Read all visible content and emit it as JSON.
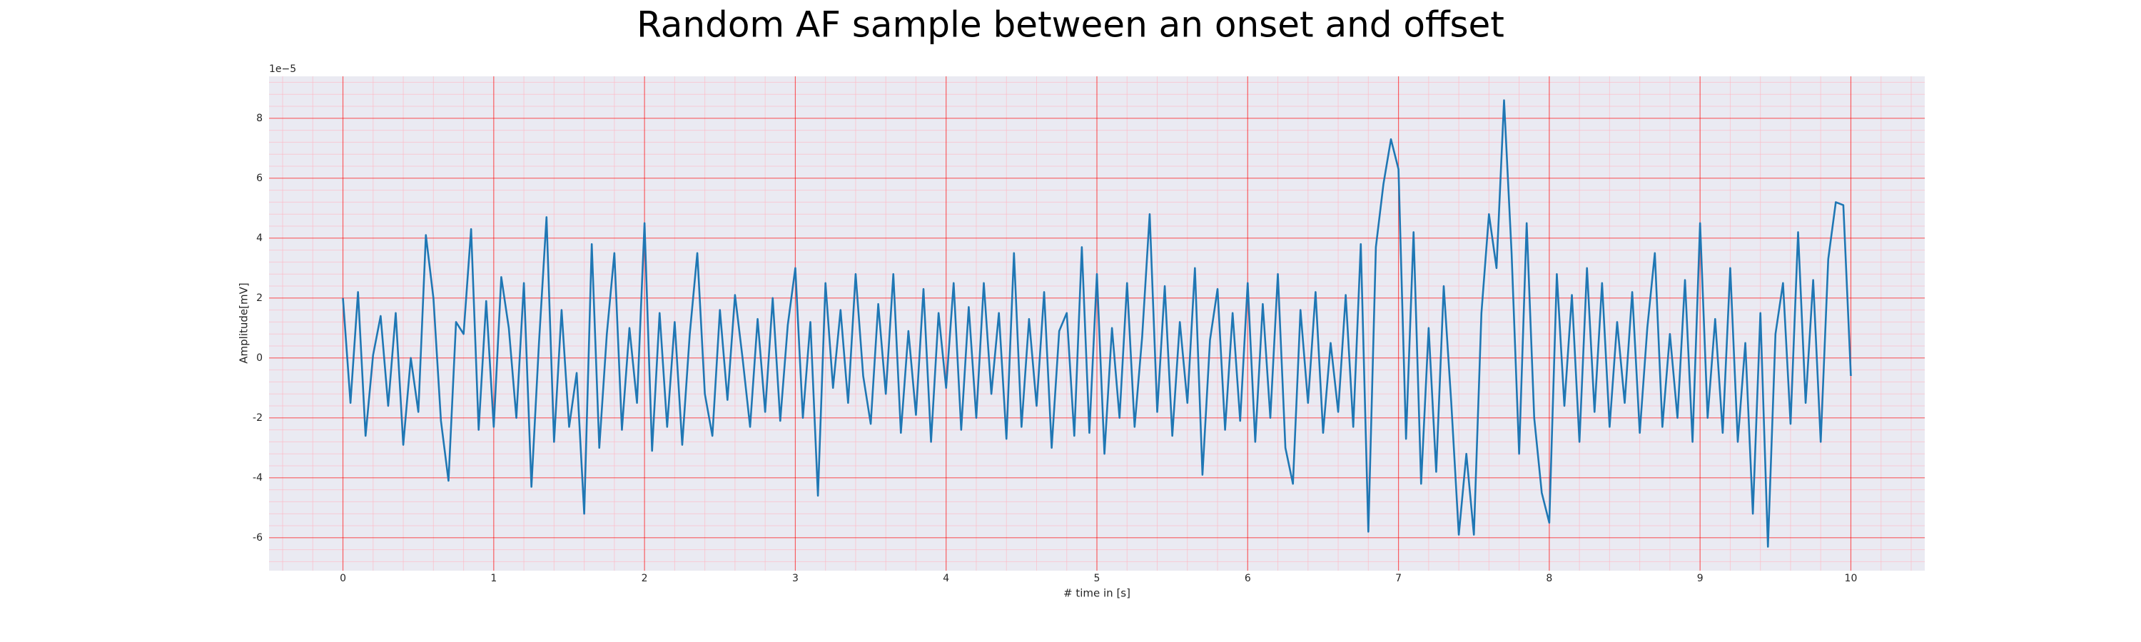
{
  "chart_data": {
    "type": "line",
    "title": "Random AF sample between an onset and offset",
    "xlabel": "# time in [s]",
    "ylabel": "Amplitude[mV]",
    "y_offset_label": "1e−5",
    "color": "#1f77b4",
    "grid": true,
    "minor_grid": true,
    "xlim": [
      -0.49,
      10.49
    ],
    "ylim": [
      -7.1,
      9.4
    ],
    "xticks": [
      0,
      1,
      2,
      3,
      4,
      5,
      6,
      7,
      8,
      9,
      10
    ],
    "yticks": [
      -6,
      -4,
      -2,
      0,
      2,
      4,
      6,
      8
    ],
    "xminorticks": [
      -0.4,
      -0.2,
      0.2,
      0.4,
      0.6,
      0.8,
      1.2,
      1.4,
      1.6,
      1.8,
      2.2,
      2.4,
      2.6,
      2.8,
      3.2,
      3.4,
      3.6,
      3.8,
      4.2,
      4.4,
      4.6,
      4.8,
      5.2,
      5.4,
      5.6,
      5.8,
      6.2,
      6.4,
      6.6,
      6.8,
      7.2,
      7.4,
      7.6,
      7.8,
      8.2,
      8.4,
      8.6,
      8.8,
      9.2,
      9.4,
      9.6,
      9.8,
      10.2,
      10.4
    ],
    "yminorticks": [
      -6.8,
      -6.4,
      -5.6,
      -5.2,
      -4.8,
      -4.4,
      -3.6,
      -3.2,
      -2.8,
      -2.4,
      -1.6,
      -1.2,
      -0.8,
      -0.4,
      0.4,
      0.8,
      1.2,
      1.6,
      2.4,
      2.8,
      3.2,
      3.6,
      4.4,
      4.8,
      5.2,
      5.6,
      6.4,
      6.8,
      7.2,
      7.6,
      8.4,
      8.8,
      9.2
    ],
    "x": [
      0,
      0.05,
      0.1,
      0.15,
      0.2,
      0.25,
      0.3,
      0.35,
      0.4,
      0.45,
      0.5,
      0.55,
      0.6,
      0.65,
      0.7,
      0.75,
      0.8,
      0.85,
      0.9,
      0.95,
      1,
      1.05,
      1.1,
      1.15,
      1.2,
      1.25,
      1.3,
      1.35,
      1.4,
      1.45,
      1.5,
      1.55,
      1.6,
      1.65,
      1.7,
      1.75,
      1.8,
      1.85,
      1.9,
      1.95,
      2,
      2.05,
      2.1,
      2.15,
      2.2,
      2.25,
      2.3,
      2.35,
      2.4,
      2.45,
      2.5,
      2.55,
      2.6,
      2.65,
      2.7,
      2.75,
      2.8,
      2.85,
      2.9,
      2.95,
      3,
      3.05,
      3.1,
      3.15,
      3.2,
      3.25,
      3.3,
      3.35,
      3.4,
      3.45,
      3.5,
      3.55,
      3.6,
      3.65,
      3.7,
      3.75,
      3.8,
      3.85,
      3.9,
      3.95,
      4,
      4.05,
      4.1,
      4.15,
      4.2,
      4.25,
      4.3,
      4.35,
      4.4,
      4.45,
      4.5,
      4.55,
      4.6,
      4.65,
      4.7,
      4.75,
      4.8,
      4.85,
      4.9,
      4.95,
      5,
      5.05,
      5.1,
      5.15,
      5.2,
      5.25,
      5.3,
      5.35,
      5.4,
      5.45,
      5.5,
      5.55,
      5.6,
      5.65,
      5.7,
      5.75,
      5.8,
      5.85,
      5.9,
      5.95,
      6,
      6.05,
      6.1,
      6.15,
      6.2,
      6.25,
      6.3,
      6.35,
      6.4,
      6.45,
      6.5,
      6.55,
      6.6,
      6.65,
      6.7,
      6.75,
      6.8,
      6.85,
      6.9,
      6.95,
      7,
      7.05,
      7.1,
      7.15,
      7.2,
      7.25,
      7.3,
      7.35,
      7.4,
      7.45,
      7.5,
      7.55,
      7.6,
      7.65,
      7.7,
      7.75,
      7.8,
      7.85,
      7.9,
      7.95,
      8,
      8.05,
      8.1,
      8.15,
      8.2,
      8.25,
      8.3,
      8.35,
      8.4,
      8.45,
      8.5,
      8.55,
      8.6,
      8.65,
      8.7,
      8.75,
      8.8,
      8.85,
      8.9,
      8.95,
      9,
      9.05,
      9.1,
      9.15,
      9.2,
      9.25,
      9.3,
      9.35,
      9.4,
      9.45,
      9.5,
      9.55,
      9.6,
      9.65,
      9.7,
      9.75,
      9.8,
      9.85,
      9.9,
      9.95,
      10
    ],
    "values": [
      2.0,
      -1.5,
      2.2,
      -2.6,
      0.1,
      1.4,
      -1.6,
      1.5,
      -2.9,
      0.0,
      -1.8,
      4.1,
      2.0,
      -2.1,
      -4.1,
      1.2,
      0.8,
      4.3,
      -2.4,
      1.9,
      -2.3,
      2.7,
      1.0,
      -2.0,
      2.5,
      -4.3,
      0.5,
      4.7,
      -2.8,
      1.6,
      -2.3,
      -0.5,
      -5.2,
      3.8,
      -3.0,
      0.8,
      3.5,
      -2.4,
      1.0,
      -1.5,
      4.5,
      -3.1,
      1.5,
      -2.3,
      1.2,
      -2.9,
      0.8,
      3.5,
      -1.2,
      -2.6,
      1.6,
      -1.4,
      2.1,
      0.0,
      -2.3,
      1.3,
      -1.8,
      2.0,
      -2.1,
      1.1,
      3.0,
      -2.0,
      1.2,
      -4.6,
      2.5,
      -1.0,
      1.6,
      -1.5,
      2.8,
      -0.6,
      -2.2,
      1.8,
      -1.2,
      2.8,
      -2.5,
      0.9,
      -1.9,
      2.3,
      -2.8,
      1.5,
      -1.0,
      2.5,
      -2.4,
      1.7,
      -2.0,
      2.5,
      -1.2,
      1.5,
      -2.7,
      3.5,
      -2.3,
      1.3,
      -1.6,
      2.2,
      -3.0,
      0.9,
      1.5,
      -2.6,
      3.7,
      -2.5,
      2.8,
      -3.2,
      1.0,
      -2.0,
      2.5,
      -2.3,
      0.7,
      4.8,
      -1.8,
      2.4,
      -2.6,
      1.2,
      -1.5,
      3.0,
      -3.9,
      0.6,
      2.3,
      -2.4,
      1.5,
      -2.1,
      2.5,
      -2.8,
      1.8,
      -2.0,
      2.8,
      -3.0,
      -4.2,
      1.6,
      -1.5,
      2.2,
      -2.5,
      0.5,
      -1.8,
      2.1,
      -2.3,
      3.8,
      -5.8,
      3.7,
      5.8,
      7.3,
      6.3,
      -2.7,
      4.2,
      -4.2,
      1.0,
      -3.8,
      2.4,
      -1.5,
      -5.9,
      -3.2,
      -5.9,
      1.5,
      4.8,
      3.0,
      8.6,
      3.5,
      -3.2,
      4.5,
      -2.0,
      -4.5,
      -5.5,
      2.8,
      -1.6,
      2.1,
      -2.8,
      3.0,
      -1.8,
      2.5,
      -2.3,
      1.2,
      -1.5,
      2.2,
      -2.5,
      1.0,
      3.5,
      -2.3,
      0.8,
      -2.0,
      2.6,
      -2.8,
      4.5,
      -2.0,
      1.3,
      -2.5,
      3.0,
      -2.8,
      0.5,
      -5.2,
      1.5,
      -6.3,
      0.8,
      2.5,
      -2.2,
      4.2,
      -1.5,
      2.6,
      -2.8,
      3.3,
      5.2,
      5.1,
      -0.6
    ]
  }
}
